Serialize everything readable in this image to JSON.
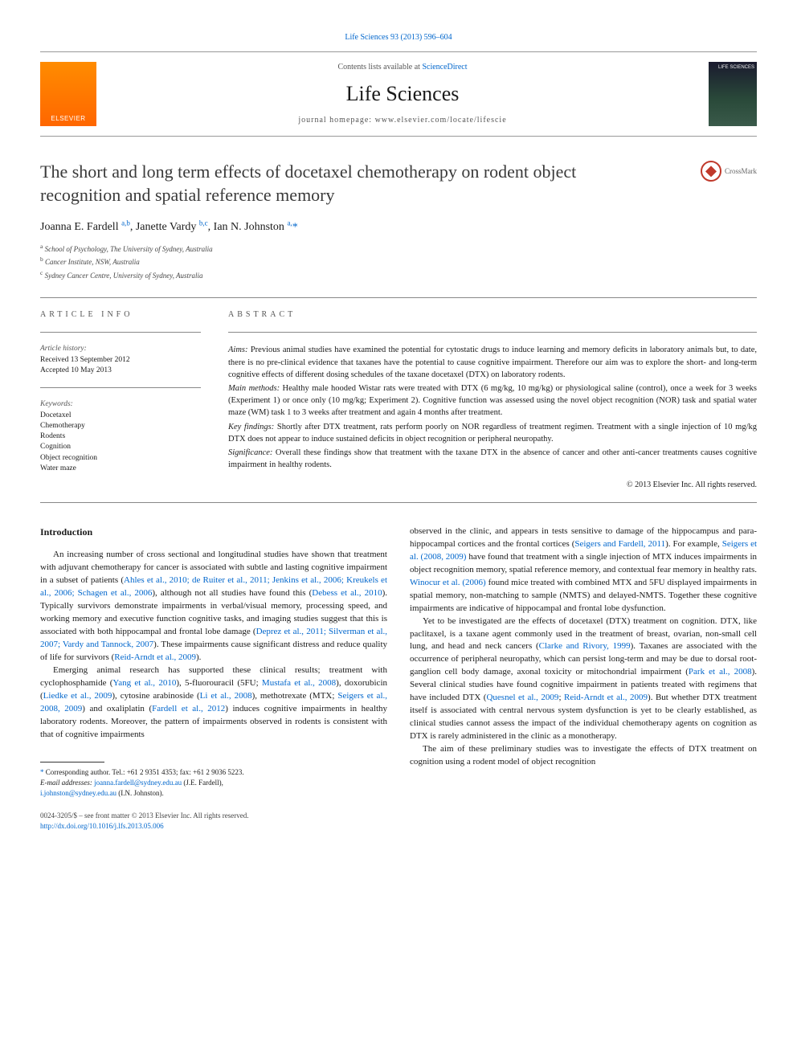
{
  "header": {
    "citation_link": "Life Sciences 93 (2013) 596–604",
    "contents_prefix": "Contents lists available at ",
    "contents_link": "ScienceDirect",
    "journal_name": "Life Sciences",
    "homepage_prefix": "journal homepage: ",
    "homepage_url": "www.elsevier.com/locate/lifescie",
    "elsevier_label": "ELSEVIER",
    "cover_label": "LIFE SCIENCES"
  },
  "crossmark_label": "CrossMark",
  "title": "The short and long term effects of docetaxel chemotherapy on rodent object recognition and spatial reference memory",
  "authors_html": "Joanna E. Fardell <sup>a,b</sup>, Janette Vardy <sup>b,c</sup>, Ian N. Johnston <sup>a,</sup>",
  "star": "*",
  "affiliations": [
    {
      "sup": "a",
      "text": " School of Psychology, The University of Sydney, Australia"
    },
    {
      "sup": "b",
      "text": " Cancer Institute, NSW, Australia"
    },
    {
      "sup": "c",
      "text": " Sydney Cancer Centre, University of Sydney, Australia"
    }
  ],
  "info": {
    "label": "ARTICLE INFO",
    "history_title": "Article history:",
    "received": "Received 13 September 2012",
    "accepted": "Accepted 10 May 2013",
    "keywords_title": "Keywords:",
    "keywords": [
      "Docetaxel",
      "Chemotherapy",
      "Rodents",
      "Cognition",
      "Object recognition",
      "Water maze"
    ]
  },
  "abstract": {
    "label": "ABSTRACT",
    "aims_label": "Aims:",
    "aims": " Previous animal studies have examined the potential for cytostatic drugs to induce learning and memory deficits in laboratory animals but, to date, there is no pre-clinical evidence that taxanes have the potential to cause cognitive impairment. Therefore our aim was to explore the short- and long-term cognitive effects of different dosing schedules of the taxane docetaxel (DTX) on laboratory rodents.",
    "methods_label": "Main methods:",
    "methods": " Healthy male hooded Wistar rats were treated with DTX (6 mg/kg, 10 mg/kg) or physiological saline (control), once a week for 3 weeks (Experiment 1) or once only (10 mg/kg; Experiment 2). Cognitive function was assessed using the novel object recognition (NOR) task and spatial water maze (WM) task 1 to 3 weeks after treatment and again 4 months after treatment.",
    "findings_label": "Key findings:",
    "findings": " Shortly after DTX treatment, rats perform poorly on NOR regardless of treatment regimen. Treatment with a single injection of 10 mg/kg DTX does not appear to induce sustained deficits in object recognition or peripheral neuropathy.",
    "significance_label": "Significance:",
    "significance": " Overall these findings show that treatment with the taxane DTX in the absence of cancer and other anti-cancer treatments causes cognitive impairment in healthy rodents.",
    "copyright": "© 2013 Elsevier Inc. All rights reserved."
  },
  "intro_heading": "Introduction",
  "body": {
    "left": [
      "An increasing number of cross sectional and longitudinal studies have shown that treatment with adjuvant chemotherapy for cancer is associated with subtle and lasting cognitive impairment in a subset of patients (<span class=\"cite\">Ahles et al., 2010; de Ruiter et al., 2011; Jenkins et al., 2006; Kreukels et al., 2006; Schagen et al., 2006</span>), although not all studies have found this (<span class=\"cite\">Debess et al., 2010</span>). Typically survivors demonstrate impairments in verbal/visual memory, processing speed, and working memory and executive function cognitive tasks, and imaging studies suggest that this is associated with both hippocampal and frontal lobe damage (<span class=\"cite\">Deprez et al., 2011; Silverman et al., 2007; Vardy and Tannock, 2007</span>). These impairments cause significant distress and reduce quality of life for survivors (<span class=\"cite\">Reid-Arndt et al., 2009</span>).",
      "Emerging animal research has supported these clinical results; treatment with cyclophosphamide (<span class=\"cite\">Yang et al., 2010</span>), 5-fluorouracil (5FU; <span class=\"cite\">Mustafa et al., 2008</span>), doxorubicin (<span class=\"cite\">Liedke et al., 2009</span>), cytosine arabinoside (<span class=\"cite\">Li et al., 2008</span>), methotrexate (MTX; <span class=\"cite\">Seigers et al., 2008, 2009</span>) and oxaliplatin (<span class=\"cite\">Fardell et al., 2012</span>) induces cognitive impairments in healthy laboratory rodents. Moreover, the pattern of impairments observed in rodents is consistent with that of cognitive impairments"
    ],
    "right": [
      "observed in the clinic, and appears in tests sensitive to damage of the hippocampus and para-hippocampal cortices and the frontal cortices (<span class=\"cite\">Seigers and Fardell, 2011</span>). For example, <span class=\"cite\">Seigers et al. (2008, 2009)</span> have found that treatment with a single injection of MTX induces impairments in object recognition memory, spatial reference memory, and contextual fear memory in healthy rats. <span class=\"cite\">Winocur et al. (2006)</span> found mice treated with combined MTX and 5FU displayed impairments in spatial memory, non-matching to sample (NMTS) and delayed-NMTS. Together these cognitive impairments are indicative of hippocampal and frontal lobe dysfunction.",
      "Yet to be investigated are the effects of docetaxel (DTX) treatment on cognition. DTX, like paclitaxel, is a taxane agent commonly used in the treatment of breast, ovarian, non-small cell lung, and head and neck cancers (<span class=\"cite\">Clarke and Rivory, 1999</span>). Taxanes are associated with the occurrence of peripheral neuropathy, which can persist long-term and may be due to dorsal root-ganglion cell body damage, axonal toxicity or mitochondrial impairment (<span class=\"cite\">Park et al., 2008</span>). Several clinical studies have found cognitive impairment in patients treated with regimens that have included DTX (<span class=\"cite\">Quesnel et al., 2009</span>; <span class=\"cite\">Reid-Arndt et al., 2009</span>). But whether DTX treatment itself is associated with central nervous system dysfunction is yet to be clearly established, as clinical studies cannot assess the impact of the individual chemotherapy agents on cognition as DTX is rarely administered in the clinic as a monotherapy.",
      "The aim of these preliminary studies was to investigate the effects of DTX treatment on cognition using a rodent model of object recognition"
    ]
  },
  "footer": {
    "corr": "Corresponding author. Tel.: +61 2 9351 4353; fax: +61 2 9036 5223.",
    "email_label": "E-mail addresses: ",
    "email1": "joanna.fardell@sydney.edu.au",
    "email1_paren": " (J.E. Fardell),",
    "email2": "i.johnston@sydney.edu.au",
    "email2_paren": " (I.N. Johnston)."
  },
  "bottom": {
    "issn": "0024-3205/$ – see front matter © 2013 Elsevier Inc. All rights reserved.",
    "doi": "http://dx.doi.org/10.1016/j.lfs.2013.05.006"
  },
  "colors": {
    "link": "#0066cc",
    "elsevier_orange": "#ff6600",
    "text": "#1a1a1a",
    "muted": "#555555"
  }
}
